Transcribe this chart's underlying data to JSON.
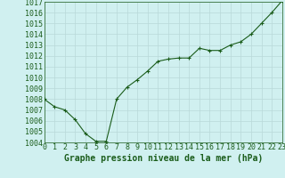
{
  "x": [
    0,
    1,
    2,
    3,
    4,
    5,
    6,
    7,
    8,
    9,
    10,
    11,
    12,
    13,
    14,
    15,
    16,
    17,
    18,
    19,
    20,
    21,
    22,
    23
  ],
  "y": [
    1008.0,
    1007.3,
    1007.0,
    1006.1,
    1004.8,
    1004.1,
    1004.1,
    1008.0,
    1009.1,
    1009.8,
    1010.6,
    1011.5,
    1011.7,
    1011.8,
    1011.8,
    1012.7,
    1012.5,
    1012.5,
    1013.0,
    1013.3,
    1014.0,
    1015.0,
    1016.0,
    1017.1
  ],
  "line_color": "#1a5c1a",
  "marker": "+",
  "marker_size": 3,
  "bg_color": "#d0f0f0",
  "grid_color": "#b8d8d8",
  "xlabel": "Graphe pression niveau de la mer (hPa)",
  "ylim": [
    1004,
    1017
  ],
  "xlim": [
    0,
    23
  ],
  "yticks": [
    1004,
    1005,
    1006,
    1007,
    1008,
    1009,
    1010,
    1011,
    1012,
    1013,
    1014,
    1015,
    1016,
    1017
  ],
  "xticks": [
    0,
    1,
    2,
    3,
    4,
    5,
    6,
    7,
    8,
    9,
    10,
    11,
    12,
    13,
    14,
    15,
    16,
    17,
    18,
    19,
    20,
    21,
    22,
    23
  ],
  "tick_color": "#1a5c1a",
  "label_fontsize": 6,
  "xlabel_fontsize": 7,
  "line_width": 0.8
}
